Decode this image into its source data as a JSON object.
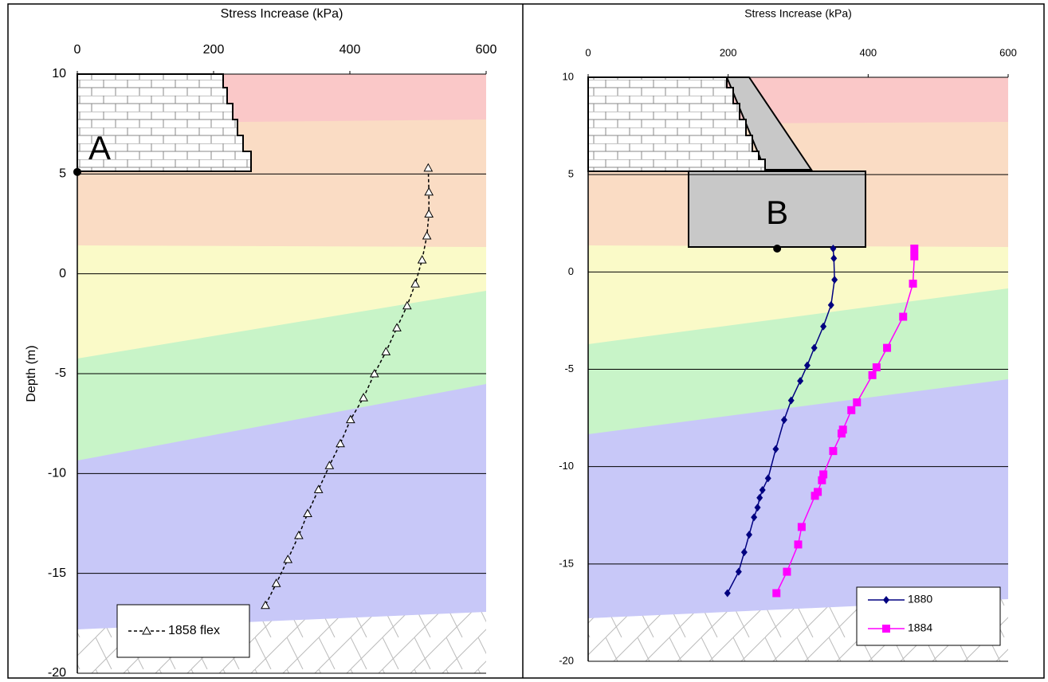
{
  "chart_data": [
    {
      "type": "line",
      "x_label": "Stress Increase (kPa)",
      "y_label": "Depth (m)",
      "xlim": [
        0,
        600
      ],
      "xticks": [
        0,
        200,
        400,
        600
      ],
      "ylim": [
        -20,
        10
      ],
      "yticks": [
        10,
        5,
        0,
        -5,
        -10,
        -15,
        -20
      ],
      "grid": true,
      "legend": "lower left",
      "annotation": {
        "label": "A",
        "x": 0,
        "y": 5.1
      },
      "series": [
        {
          "name": "1858 flex",
          "color": "#000000",
          "marker": "triangle-open",
          "dashed": true,
          "x": [
            515,
            516,
            516,
            513,
            506,
            496,
            484,
            469,
            453,
            436,
            420,
            401,
            386,
            370,
            354,
            338,
            325,
            309,
            292,
            276
          ],
          "y": [
            5.3,
            4.1,
            3.0,
            1.9,
            0.7,
            -0.5,
            -1.6,
            -2.7,
            -3.9,
            -5.0,
            -6.2,
            -7.3,
            -8.5,
            -9.6,
            -10.8,
            -12.0,
            -13.1,
            -14.3,
            -15.5,
            -16.6
          ]
        }
      ]
    },
    {
      "type": "line",
      "x_label": "Stress Increase (kPa)",
      "xlim": [
        0,
        600
      ],
      "xticks": [
        0,
        200,
        400,
        600
      ],
      "ylim": [
        -20,
        10
      ],
      "yticks": [
        10,
        5,
        0,
        -5,
        -10,
        -15,
        -20
      ],
      "grid": true,
      "legend": "lower right",
      "annotation": {
        "label": "B",
        "x": 270,
        "y": 1.2
      },
      "series": [
        {
          "name": "1880",
          "color": "#000080",
          "marker": "diamond",
          "dashed": false,
          "x": [
            350,
            351,
            352,
            347,
            336,
            323,
            313,
            303,
            290,
            280,
            268,
            257,
            249,
            245,
            242,
            237,
            230,
            223,
            215,
            199
          ],
          "y": [
            1.2,
            0.7,
            -0.4,
            -1.7,
            -2.8,
            -3.9,
            -4.8,
            -5.6,
            -6.6,
            -7.6,
            -9.1,
            -10.6,
            -11.2,
            -11.6,
            -12.1,
            -12.6,
            -13.5,
            -14.4,
            -15.4,
            -16.5
          ]
        },
        {
          "name": "1884",
          "color": "#ff00ff",
          "marker": "square",
          "dashed": false,
          "x": [
            466,
            466,
            464,
            450,
            427,
            412,
            406,
            384,
            376,
            364,
            362,
            350,
            336,
            334,
            328,
            324,
            305,
            300,
            284,
            269
          ],
          "y": [
            1.2,
            0.8,
            -0.6,
            -2.3,
            -3.9,
            -4.9,
            -5.3,
            -6.7,
            -7.1,
            -8.1,
            -8.3,
            -9.2,
            -10.4,
            -10.7,
            -11.3,
            -11.5,
            -13.1,
            -14.0,
            -15.4,
            -16.5
          ]
        }
      ]
    }
  ]
}
